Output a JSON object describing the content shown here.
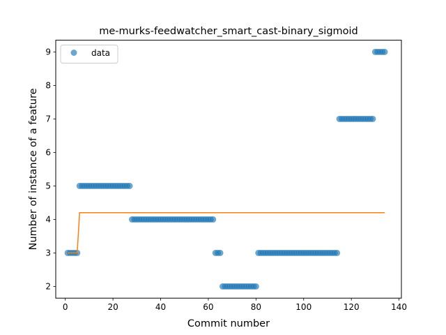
{
  "chart_data": {
    "type": "scatter",
    "title": "me-murks-feedwatcher_smart_cast-binary_sigmoid",
    "xlabel": "Commit number",
    "ylabel": "Number of instance of a feature",
    "xlim": [
      -4,
      141
    ],
    "ylim": [
      1.65,
      9.35
    ],
    "xticks": [
      0,
      20,
      40,
      60,
      80,
      100,
      120,
      140
    ],
    "yticks": [
      2,
      3,
      4,
      5,
      6,
      7,
      8,
      9
    ],
    "grid": false,
    "legend": {
      "entries": [
        "data"
      ],
      "placement": "top-left"
    },
    "colors": {
      "data": "#1f77b4",
      "fit": "#ff7f0e"
    },
    "series": [
      {
        "name": "data",
        "kind": "scatter",
        "segments": [
          {
            "x_start": 1,
            "x_end": 5,
            "y": 3
          },
          {
            "x_start": 6,
            "x_end": 27,
            "y": 5
          },
          {
            "x_start": 28,
            "x_end": 62,
            "y": 4
          },
          {
            "x_start": 63,
            "x_end": 65,
            "y": 3
          },
          {
            "x_start": 66,
            "x_end": 80,
            "y": 2
          },
          {
            "x_start": 81,
            "x_end": 114,
            "y": 3
          },
          {
            "x_start": 115,
            "x_end": 129,
            "y": 7
          },
          {
            "x_start": 130,
            "x_end": 134,
            "y": 9
          }
        ]
      },
      {
        "kind": "line",
        "x": [
          1,
          5,
          6,
          134
        ],
        "y": [
          3.0,
          3.0,
          4.2,
          4.2
        ]
      }
    ]
  }
}
